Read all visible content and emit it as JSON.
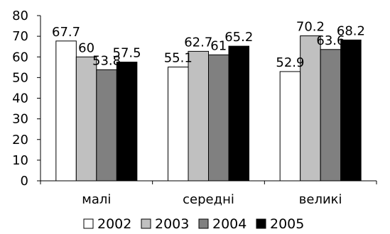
{
  "chart_data": {
    "type": "bar",
    "categories": [
      "малі",
      "середні",
      "великі"
    ],
    "series": [
      {
        "name": "2002",
        "values": [
          67.7,
          55.1,
          52.9
        ],
        "color": "#ffffff"
      },
      {
        "name": "2003",
        "values": [
          60,
          62.7,
          70.2
        ],
        "color": "#c0c0c0"
      },
      {
        "name": "2004",
        "values": [
          53.8,
          61,
          63.6
        ],
        "color": "#808080"
      },
      {
        "name": "2005",
        "values": [
          57.5,
          65.2,
          68.2
        ],
        "color": "#000000"
      }
    ],
    "data_labels": [
      [
        "67.7",
        "55.1",
        "52.9"
      ],
      [
        "60",
        "62.7",
        "70.2"
      ],
      [
        "53.8",
        "61",
        "63.6"
      ],
      [
        "57.5",
        "65.2",
        "68.2"
      ]
    ],
    "ylim": [
      0,
      80
    ],
    "yticks": [
      "0",
      "10",
      "20",
      "30",
      "40",
      "50",
      "60",
      "70",
      "80"
    ],
    "grid": false,
    "legend_position": "bottom"
  }
}
